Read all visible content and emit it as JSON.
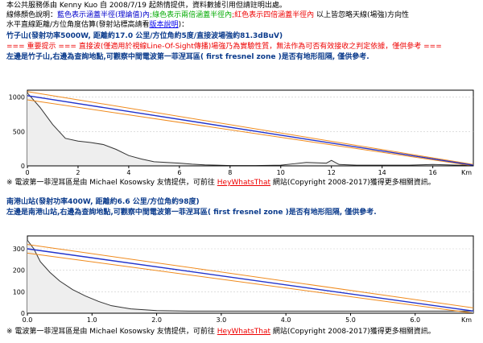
{
  "header": {
    "intro": "本公共服務係由 Kenny Kuo 自 2008/7/19 起熱情提供，資料數據引用但請註明出處。",
    "legend_prefix": "線條顏色說明：",
    "legend_blue": "藍色表示涵蓋半徑(理論值)內",
    "legend_green": ";綠色表示兩倍涵蓋半徑內",
    "legend_red": ";紅色表示四倍涵蓋半徑內",
    "legend_suffix": "以上皆忽略天線(場強)方向性",
    "method_text": "水平直線距離/方位角度估算(發射站標高請看",
    "method_link": "版本說明",
    "method_close": ")："
  },
  "section1": {
    "title": "竹子山(發射功率5000W, 距離約17.0 公里/方位角約5度/直接波場強約81.3dBuV)",
    "warning": "=== 重要提示 === 直接波(僅適用於視線Line-Of-Sight傳播)場強乃為實驗性質，無法作為可否有效接收之判定依據，僅供參考 ===",
    "description": "左邊是竹子山,右邊為查詢地點,可觀察中間電波第一菲涅耳區( first fresnel zone )是否有地形阻隔, 僅供參考."
  },
  "footer1": {
    "asterisk": "※",
    "credit_pre": "電波第一菲涅耳區是由 Michael Kosowsky 友情提供，可前往",
    "link_label": "HeyWhatsThat",
    "credit_post": "網站(Copyright 2008-2017)獲得更多相關資訊。"
  },
  "section2": {
    "title": "南港山站(發射功率400W, 距離約6.6 公里/方位角約98度)",
    "description": "左邊是南港山站,右邊為查詢地點,可觀察中間電波第一菲涅耳區( first fresnel zone )是否有地形阻隔, 僅供參考."
  },
  "footer2": {
    "asterisk": "※",
    "credit_pre": "電波第一菲涅耳區是由 Michael Kosowsky 友情提供，可前往",
    "link_label": "HeyWhatsThat",
    "credit_post": "網站(Copyright 2008-2017)獲得更多相關資訊。"
  },
  "colors": {
    "terrain": "#eeeeee",
    "terrain_line": "#333333",
    "los_line": "#2233cc",
    "fresnel_line": "#f08a1c",
    "grid": "#cccccc"
  },
  "chart_data": [
    {
      "type": "area",
      "x_unit": "km",
      "y_ticks": [
        0,
        500,
        1000
      ],
      "ylim": [
        0,
        1100
      ],
      "x_ticks": [
        0,
        2,
        4,
        6,
        8,
        10,
        12,
        14,
        16
      ],
      "x_unit_label": "Km",
      "xlim": [
        0,
        17.6
      ],
      "terrain_x": [
        0,
        0.5,
        1,
        1.5,
        2,
        2.5,
        3,
        3.5,
        4,
        4.5,
        5,
        5.5,
        6,
        6.5,
        7,
        7.5,
        8,
        9,
        10,
        10.5,
        11,
        11.8,
        12,
        12.3,
        13,
        14,
        15,
        16,
        17,
        17.6
      ],
      "terrain_y": [
        1060,
        850,
        600,
        400,
        360,
        340,
        310,
        240,
        150,
        100,
        60,
        50,
        40,
        25,
        15,
        10,
        5,
        5,
        10,
        30,
        50,
        40,
        80,
        20,
        10,
        10,
        10,
        20,
        10,
        10
      ],
      "los": [
        [
          0,
          1020
        ],
        [
          17.6,
          10
        ]
      ],
      "fresnel_upper": [
        [
          0,
          1080
        ],
        [
          17.6,
          20
        ]
      ],
      "fresnel_lower": [
        [
          0,
          960
        ],
        [
          17.6,
          0
        ]
      ]
    },
    {
      "type": "area",
      "x_unit": "km",
      "y_ticks": [
        0,
        100,
        200,
        300
      ],
      "ylim": [
        0,
        360
      ],
      "x_ticks": [
        0.0,
        1.0,
        2.0,
        3.0,
        4.0,
        5.0,
        6.0
      ],
      "x_unit_label": "Km",
      "xlim": [
        0,
        6.9
      ],
      "terrain_x": [
        0,
        0.1,
        0.2,
        0.35,
        0.5,
        0.7,
        0.9,
        1.1,
        1.3,
        1.6,
        2.0,
        2.5,
        3.0,
        3.5,
        4.0,
        4.5,
        5.0,
        5.5,
        6.0,
        6.5,
        6.9
      ],
      "terrain_y": [
        340,
        300,
        240,
        190,
        150,
        110,
        80,
        55,
        35,
        20,
        12,
        10,
        10,
        10,
        10,
        10,
        10,
        10,
        10,
        10,
        10
      ],
      "los": [
        [
          0,
          300
        ],
        [
          6.9,
          10
        ]
      ],
      "fresnel_upper": [
        [
          0,
          320
        ],
        [
          6.9,
          25
        ]
      ],
      "fresnel_lower": [
        [
          0,
          280
        ],
        [
          6.9,
          0
        ]
      ]
    }
  ]
}
